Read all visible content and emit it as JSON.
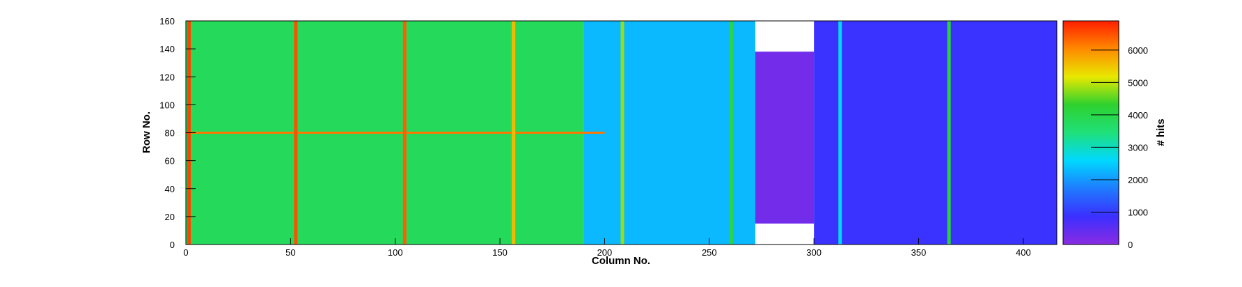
{
  "chart_data": {
    "type": "heatmap",
    "title": "",
    "xlabel": "Column No.",
    "ylabel": "Row No.",
    "zlabel": "# hits",
    "xlim": [
      0,
      416
    ],
    "ylim": [
      0,
      160
    ],
    "zlim": [
      0,
      6900
    ],
    "x_ticks": [
      0,
      50,
      100,
      150,
      200,
      250,
      300,
      350,
      400
    ],
    "y_ticks": [
      0,
      20,
      40,
      60,
      80,
      100,
      120,
      140,
      160
    ],
    "z_ticks": [
      0,
      1000,
      2000,
      3000,
      4000,
      5000,
      6000
    ],
    "colormap": "rainbow (violet-blue-cyan-green-yellow-red)",
    "colormap_stops": [
      "#8a2be2",
      "#3b2fff",
      "#1f7bff",
      "#00d8ff",
      "#1fe07a",
      "#2ed12e",
      "#e8e800",
      "#ff8a00",
      "#ff1e00"
    ],
    "regions": [
      {
        "name": "left block",
        "columns": [
          0,
          190
        ],
        "rows": [
          0,
          160
        ],
        "typical_hits": 3800
      },
      {
        "name": "central block",
        "columns": [
          190,
          272
        ],
        "rows": [
          0,
          160
        ],
        "typical_hits": 2300
      },
      {
        "name": "dense block",
        "columns": [
          272,
          300
        ],
        "rows": [
          15,
          138
        ],
        "typical_hits": 250
      },
      {
        "name": "right block",
        "columns": [
          300,
          416
        ],
        "rows": [
          0,
          160
        ],
        "typical_hits": 900
      }
    ],
    "hot_columns": [
      {
        "column": 1,
        "hits": 6600
      },
      {
        "column": 52,
        "hits": 6500
      },
      {
        "column": 104,
        "hits": 6400
      },
      {
        "column": 156,
        "hits": 5600
      },
      {
        "column": 208,
        "hits": 4800
      },
      {
        "column": 260,
        "hits": 4100
      },
      {
        "column": 312,
        "hits": 2600
      },
      {
        "column": 364,
        "hits": 4200
      }
    ],
    "hot_rows": [
      {
        "row": 80,
        "columns": [
          0,
          200
        ],
        "hits": 6200
      }
    ],
    "grid": false
  }
}
